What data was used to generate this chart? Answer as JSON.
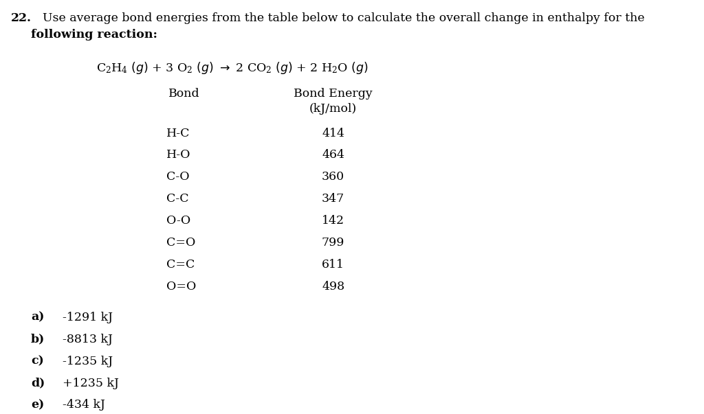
{
  "question_number": "22.",
  "question_line1": "Use average bond energies from the table below to calculate the overall change in enthalpy for the",
  "question_line2": "following reaction:",
  "reaction_text": "C₂H₄ (γ) + 3 O₂ (γ) → 2 CO₂ (γ) + 2 H₂O (γ)",
  "table_col1_header": "Bond",
  "table_col2_header1": "Bond Energy",
  "table_col2_header2": "(kJ/mol)",
  "bonds": [
    "H-C",
    "H-O",
    "C-O",
    "C-C",
    "O-O",
    "C=O",
    "C=C",
    "O=O"
  ],
  "energies": [
    "414",
    "464",
    "360",
    "347",
    "142",
    "799",
    "611",
    "498"
  ],
  "answer_letters": [
    "a)",
    "b)",
    "c)",
    "d)",
    "e)"
  ],
  "answer_values": [
    "-1291 kJ",
    "-8813 kJ",
    "-1235 kJ",
    "+1235 kJ",
    "-434 kJ"
  ],
  "bg_color": "#ffffff",
  "text_color": "#000000",
  "fontsize": 12.5
}
